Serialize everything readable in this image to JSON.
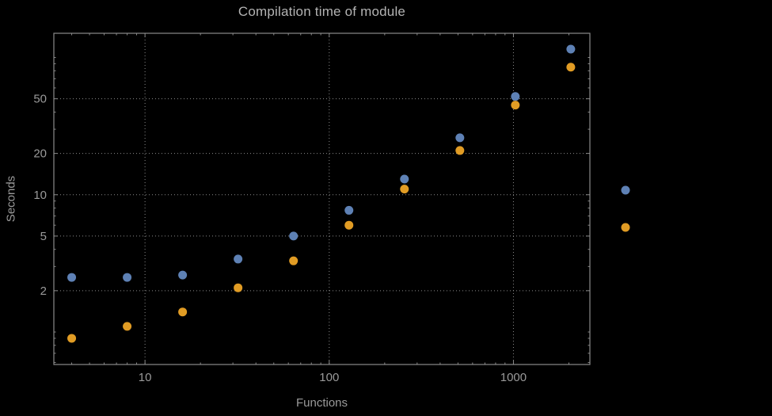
{
  "chart_data": {
    "type": "scatter",
    "title": "Compilation time of module",
    "xlabel": "Functions",
    "ylabel": "Seconds",
    "x_scale": "log",
    "y_scale": "log",
    "x": [
      4,
      8,
      16,
      32,
      64,
      128,
      256,
      512,
      1024,
      2048
    ],
    "series": [
      {
        "color": "#5e81b5",
        "values": [
          2.5,
          2.5,
          2.6,
          3.4,
          5.0,
          7.7,
          13,
          26,
          52,
          115
        ]
      },
      {
        "color": "#e19c24",
        "values": [
          0.9,
          1.1,
          1.4,
          2.1,
          3.3,
          6.0,
          11,
          21,
          45,
          85
        ]
      }
    ],
    "x_ticks": [
      10,
      100,
      1000
    ],
    "y_ticks": [
      2,
      5,
      10,
      20,
      50
    ],
    "xlim": [
      3.2,
      2600
    ],
    "ylim": [
      0.58,
      150
    ],
    "grid": "dotted",
    "legend_position": "right-of-frame-unlabeled-markers",
    "colors": {
      "background": "#000000",
      "frame": "#8a8a8a",
      "grid": "#8a8a8a",
      "tick_text": "#9a9a9a",
      "title_text": "#b3b3b3",
      "point_blue": "#5e81b5",
      "point_orange": "#e19c24"
    }
  }
}
